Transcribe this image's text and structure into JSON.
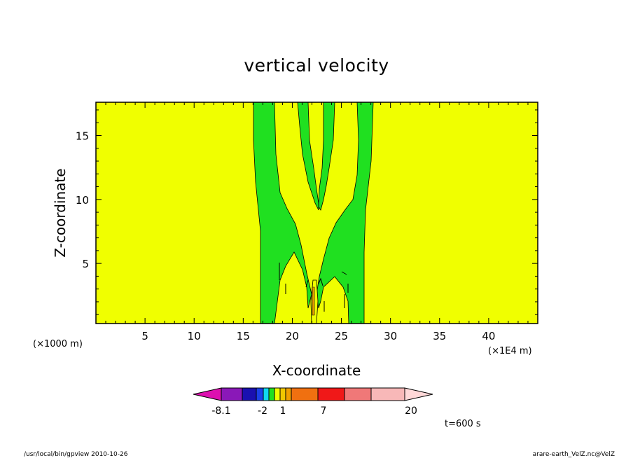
{
  "chart_data": {
    "type": "heatmap",
    "title": "vertical velocity",
    "xlabel": "X-coordinate",
    "ylabel": "Z-coordinate",
    "x_unit": "(×1E4 m)",
    "y_unit": "(×1000 m)",
    "xlim": [
      0,
      45
    ],
    "ylim": [
      0.3,
      17.6
    ],
    "x_ticks": [
      5,
      10,
      15,
      20,
      25,
      30,
      35,
      40
    ],
    "y_ticks": [
      5,
      10,
      15
    ],
    "colorbar": {
      "labels": [
        "-8.1",
        "-2",
        "1",
        "7",
        "20"
      ],
      "colors": [
        "#dd10b0",
        "#8a18b8",
        "#1a10b0",
        "#1a40e8",
        "#10d8f0",
        "#20e020",
        "#f0ff00",
        "#f0c800",
        "#f0a000",
        "#f07010",
        "#f01818",
        "#f07878",
        "#f8b8b8",
        "#ffd8d8"
      ]
    },
    "time_label": "t=600 s"
  },
  "footer": {
    "left": "/usr/local/bin/gpview   2010-10-26",
    "right": "arare-earth_VelZ.nc@VelZ"
  },
  "colors": {
    "background_field": "#f0ff00",
    "updraft_field": "#20e020"
  }
}
